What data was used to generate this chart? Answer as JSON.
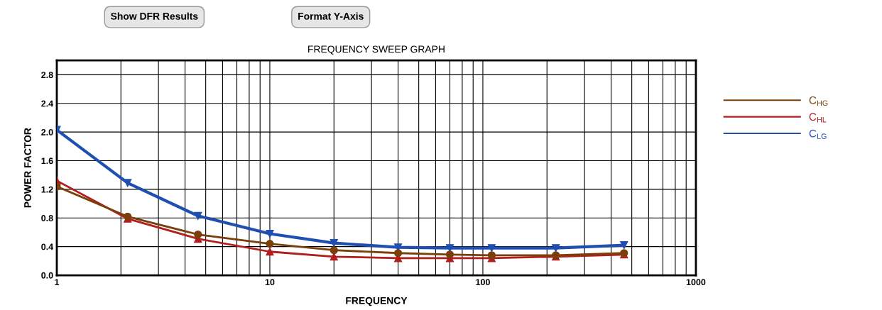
{
  "chart_data": {
    "type": "line",
    "title": "FREQUENCY SWEEP GRAPH",
    "xlabel": "FREQUENCY",
    "ylabel": "POWER FACTOR",
    "annotations": [
      "Show DFR Results",
      "Format Y-Axis"
    ],
    "x": [
      1,
      2.15,
      4.6,
      10,
      20,
      40,
      70,
      110,
      220,
      460
    ],
    "series": [
      {
        "name": "C$_{HG}$",
        "color": "#7a3f0a",
        "marker": "circle",
        "values": [
          1.24,
          0.82,
          0.57,
          0.44,
          0.35,
          0.31,
          0.29,
          0.28,
          0.28,
          0.31
        ]
      },
      {
        "name": "C$_{HL}$",
        "color": "#b01e1e",
        "marker": "triangle",
        "values": [
          1.32,
          0.79,
          0.51,
          0.33,
          0.26,
          0.24,
          0.24,
          0.24,
          0.26,
          0.29
        ]
      },
      {
        "name": "C$_{LG}$",
        "color": "#1f4fb0",
        "marker": "triangle_down",
        "values": [
          2.03,
          1.29,
          0.83,
          0.58,
          0.45,
          0.39,
          0.38,
          0.38,
          0.38,
          0.42
        ]
      }
    ],
    "log": "x",
    "xlim": [
      1,
      1000
    ],
    "xticks": [
      1,
      10,
      100,
      1000
    ],
    "ylim": [
      0,
      3.0
    ],
    "yticks": [
      {
        "value": 0,
        "label": "0.0"
      },
      {
        "value": 0.4,
        "label": "0.4"
      },
      {
        "value": 0.8,
        "label": "0.8"
      },
      {
        "value": 1.2,
        "label": "1.2"
      },
      {
        "value": 1.6,
        "label": "1.6"
      },
      {
        "value": 2.0,
        "label": "2.0"
      },
      {
        "value": 2.4,
        "label": "2.4"
      },
      {
        "value": 2.8,
        "label": "2.8"
      }
    ],
    "grid": true,
    "legend": "right",
    "line_style": "solid"
  }
}
